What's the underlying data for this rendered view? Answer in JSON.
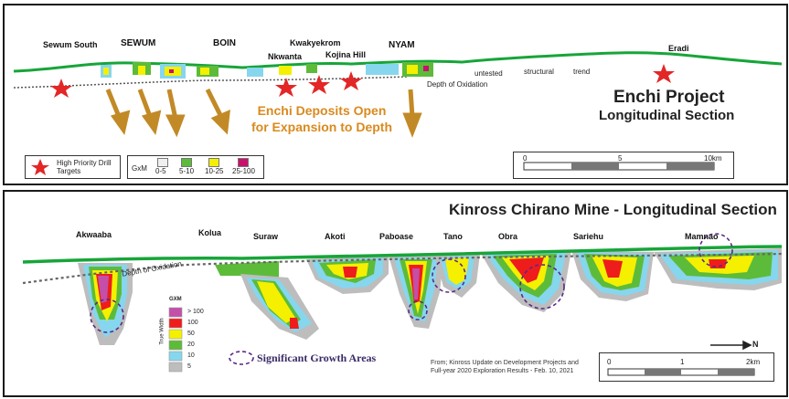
{
  "colors": {
    "surface_green": "#17a539",
    "star_red": "#e32626",
    "arrow_gold": "#c28a26",
    "grade_gray": "#bdbdbd",
    "grade_cyan": "#86d6ee",
    "grade_green": "#5dbb3a",
    "grade_yellow": "#f4f000",
    "grade_red": "#ef1c1c",
    "grade_magenta": "#c34fa8",
    "growth_circle": "#5a2a87"
  },
  "enchi": {
    "deposits": {
      "sewum_south": "Sewum South",
      "sewum": "SEWUM",
      "boin": "BOIN",
      "kwakyekrom": "Kwakyekrom",
      "nkwanta": "Nkwanta",
      "kojina_hill": "Kojina Hill",
      "nyam": "NYAM",
      "eradi": "Eradi"
    },
    "trend_words": [
      "untested",
      "structural",
      "trend"
    ],
    "depth_label": "Depth of Oxidation",
    "expansion_text_line1": "Enchi Deposits Open",
    "expansion_text_line2": "for Expansion to Depth",
    "title_line1": "Enchi Project",
    "title_line2": "Longitudinal Section",
    "legend_star": "High Priority Drill Targets",
    "legend_gxm": "GxM",
    "legend_grades": [
      "0-5",
      "5-10",
      "10-25",
      "25-100"
    ],
    "scale_labels": [
      "0",
      "5",
      "10km"
    ]
  },
  "chirano": {
    "title": "Kinross Chirano Mine - Longitudinal Section",
    "deposits": [
      "Akwaaba",
      "Kolua",
      "Suraw",
      "Akoti",
      "Paboase",
      "Tano",
      "Obra",
      "Sariehu",
      "Mamnao"
    ],
    "depth_label": "Depth of Oxidation",
    "legend_gxm": "GXM",
    "legend_axis": "True Width",
    "legend_grades": [
      "> 100",
      "100",
      "50",
      "20",
      "10",
      "5"
    ],
    "growth_label": "Significant Growth Areas",
    "source_line1": "From; Kinross Update on Development Projects and",
    "source_line2": "Full-year 2020 Exploration Results - Feb. 10, 2021",
    "scale_labels": [
      "0",
      "1",
      "2km"
    ],
    "north": "N"
  }
}
